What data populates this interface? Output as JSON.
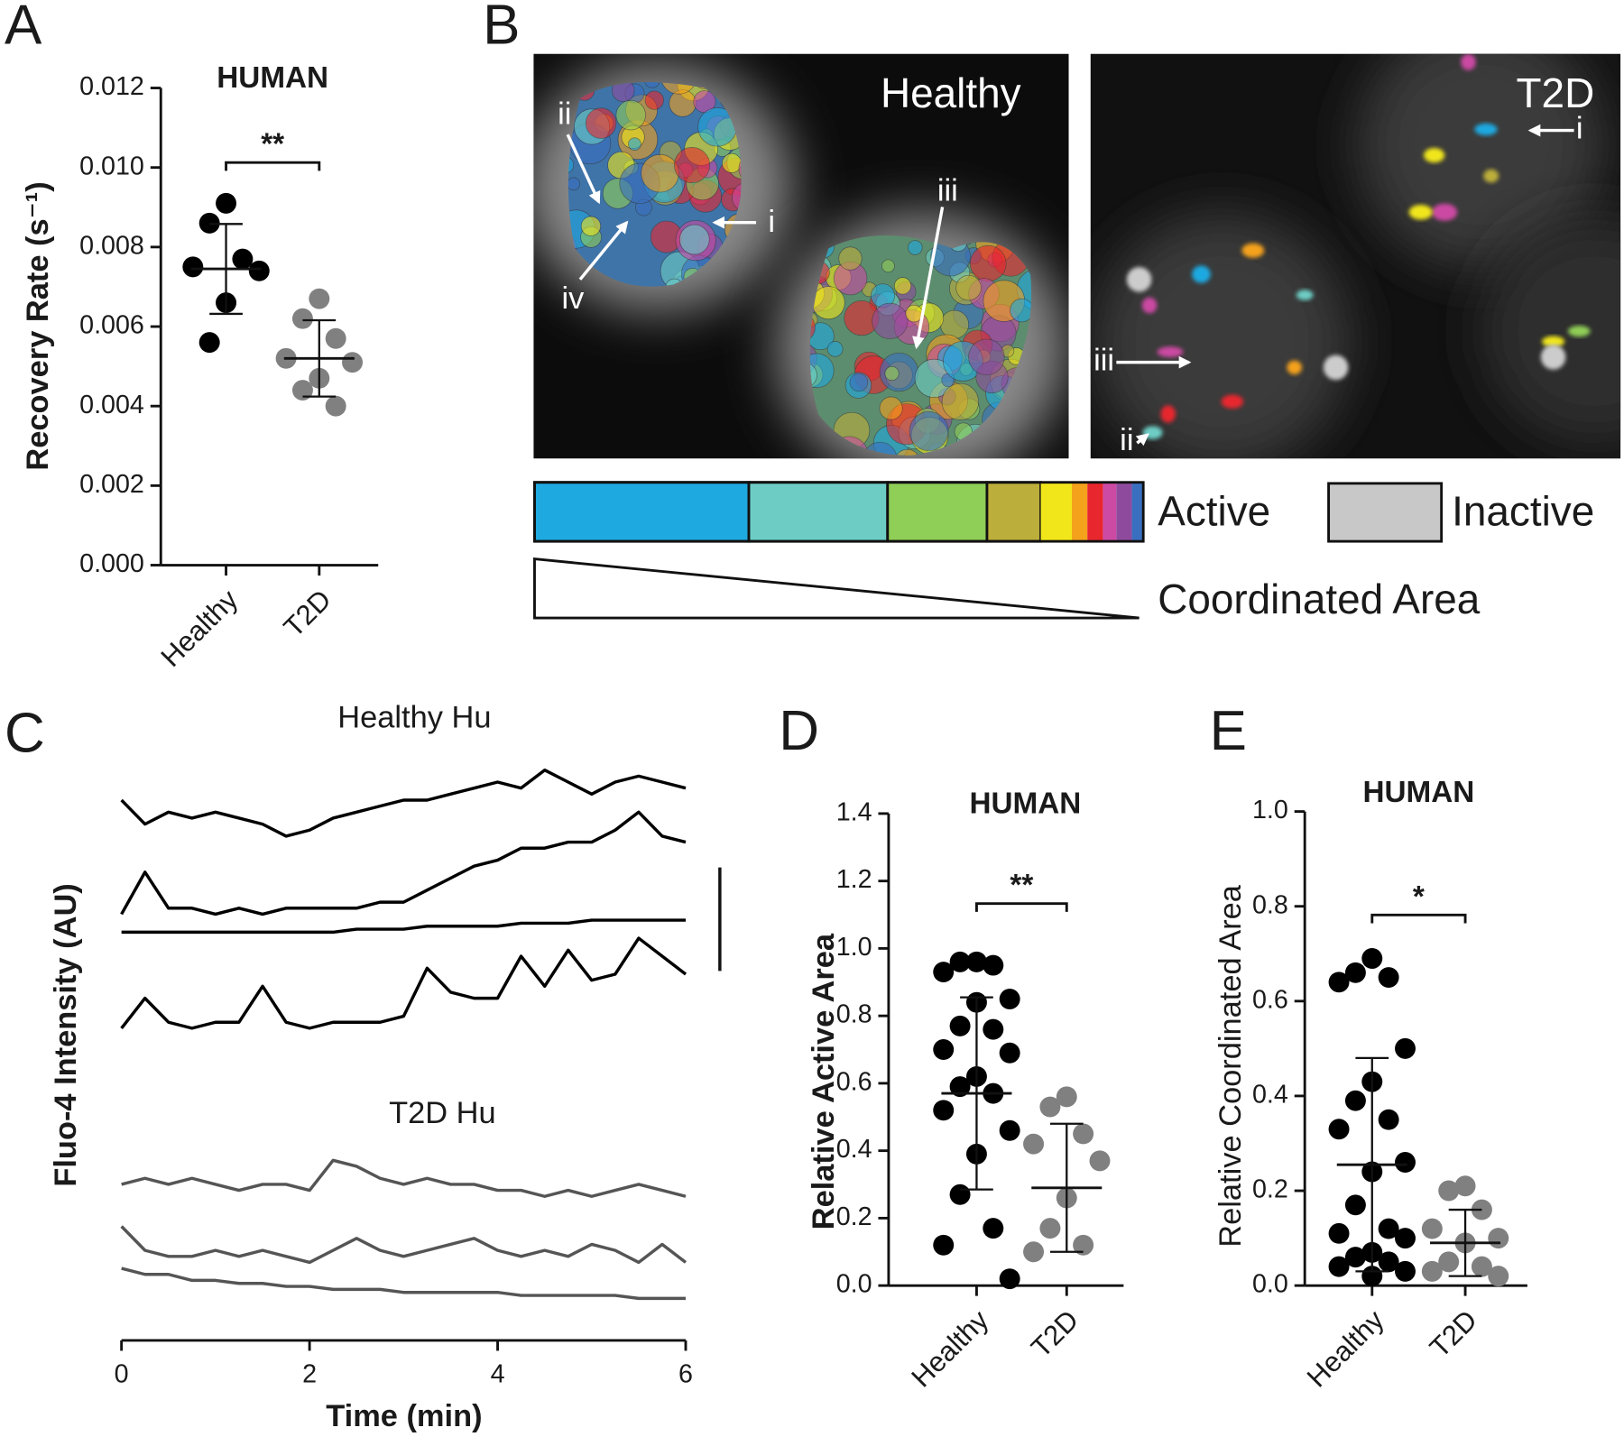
{
  "panel_labels": [
    "A",
    "B",
    "C",
    "D",
    "E"
  ],
  "image_panel": {
    "healthy_label": "Healthy",
    "t2d_label": "T2D",
    "healthy_arrows": [
      "i",
      "ii",
      "iii",
      "iv"
    ],
    "t2d_arrows": [
      "i",
      "ii",
      "iii"
    ],
    "legend": {
      "active": "Active",
      "inactive": "Inactive",
      "coordinated": "Coordinated Area"
    }
  },
  "chart_data": [
    {
      "type": "dotplot",
      "title": "HUMAN",
      "ylabel": "Recovery Rate (s⁻¹)",
      "significance": "**",
      "ylim": [
        0,
        0.012
      ],
      "yticks": [
        {
          "value": 0,
          "label": "0.000"
        },
        {
          "value": 0.002,
          "label": "0.002"
        },
        {
          "value": 0.004,
          "label": "0.004"
        },
        {
          "value": 0.006,
          "label": "0.006"
        },
        {
          "value": 0.008,
          "label": "0.008"
        },
        {
          "value": 0.01,
          "label": "0.010"
        },
        {
          "value": 0.012,
          "label": "0.012"
        }
      ],
      "groups": [
        {
          "name": "Healthy",
          "color": "#000000",
          "values": [
            0.0091,
            0.0086,
            0.0077,
            0.0075,
            0.0074,
            0.0066,
            0.0056
          ],
          "mean": 0.00745,
          "sd": 0.00113
        },
        {
          "name": "T2D",
          "color": "#808080",
          "values": [
            0.0067,
            0.0062,
            0.0057,
            0.0052,
            0.0051,
            0.0047,
            0.0044,
            0.004
          ],
          "mean": 0.0052,
          "sd": 0.00096
        }
      ]
    },
    {
      "type": "line",
      "annotations": [
        "Healthy Hu",
        "T2D Hu"
      ],
      "xlabel": "Time (min)",
      "ylabel": "Fluo-4 Intensity (AU)",
      "x": [
        0,
        0.25,
        0.5,
        0.75,
        1,
        1.25,
        1.5,
        1.75,
        2,
        2.25,
        2.5,
        2.75,
        3,
        3.25,
        3.5,
        3.75,
        4,
        4.25,
        4.5,
        4.75,
        5,
        5.25,
        5.5,
        5.75,
        6
      ],
      "xlim": [
        0,
        6
      ],
      "xticks": [
        0,
        2,
        4,
        6
      ],
      "ylim": [
        0,
        100
      ],
      "series": [
        {
          "color": "#000000",
          "values": [
            90,
            86,
            88,
            87,
            88,
            87,
            86,
            84,
            85,
            87,
            88,
            89,
            90,
            90,
            91,
            92,
            93,
            92,
            95,
            93,
            91,
            93,
            94,
            93,
            92
          ]
        },
        {
          "color": "#000000",
          "values": [
            71,
            78,
            72,
            72,
            71,
            72,
            71,
            72,
            72,
            72,
            72,
            73,
            73,
            75,
            77,
            79,
            80,
            82,
            82,
            83,
            83,
            85,
            88,
            84,
            83
          ]
        },
        {
          "color": "#000000",
          "values": [
            68,
            68,
            68,
            68,
            68,
            68,
            68,
            68,
            68,
            68,
            68.5,
            68.5,
            68.5,
            69,
            69,
            69,
            69,
            69.5,
            69.5,
            69.5,
            70,
            70,
            70,
            70,
            70
          ]
        },
        {
          "color": "#000000",
          "values": [
            52,
            57,
            53,
            52,
            53,
            53,
            59,
            53,
            52,
            53,
            53,
            53,
            54,
            62,
            58,
            57,
            57,
            64,
            59,
            65,
            60,
            61,
            67,
            64,
            61
          ]
        },
        {
          "color": "#555555",
          "values": [
            26,
            27,
            26,
            27,
            26,
            25,
            26,
            26,
            25,
            30,
            29,
            27,
            26,
            27,
            26,
            26,
            25,
            25,
            24,
            25,
            24,
            25,
            26,
            25,
            24
          ]
        },
        {
          "color": "#555555",
          "values": [
            19,
            15,
            14,
            14,
            15,
            14,
            15,
            14,
            13,
            15,
            17,
            15,
            14,
            15,
            16,
            17,
            15,
            14,
            15,
            14,
            16,
            15,
            13,
            16,
            13
          ]
        },
        {
          "color": "#555555",
          "values": [
            12,
            11,
            11,
            10,
            10,
            9.5,
            9.5,
            9,
            9,
            8.5,
            8.5,
            8.5,
            8,
            8,
            8,
            8,
            8,
            7.5,
            7.5,
            7.5,
            7.5,
            7.5,
            7,
            7,
            7
          ]
        }
      ]
    },
    {
      "type": "dotplot",
      "title": "HUMAN",
      "ylabel": "Relative Active Area",
      "significance": "**",
      "ylim": [
        0,
        1.4
      ],
      "yticks": [
        {
          "value": 0,
          "label": "0.0"
        },
        {
          "value": 0.2,
          "label": "0.2"
        },
        {
          "value": 0.4,
          "label": "0.4"
        },
        {
          "value": 0.6,
          "label": "0.6"
        },
        {
          "value": 0.8,
          "label": "0.8"
        },
        {
          "value": 1,
          "label": "1.0"
        },
        {
          "value": 1.2,
          "label": "1.2"
        },
        {
          "value": 1.4,
          "label": "1.4"
        }
      ],
      "groups": [
        {
          "name": "Healthy",
          "color": "#000000",
          "values": [
            0.96,
            0.96,
            0.95,
            0.93,
            0.85,
            0.84,
            0.77,
            0.76,
            0.7,
            0.69,
            0.62,
            0.59,
            0.57,
            0.52,
            0.46,
            0.39,
            0.27,
            0.17,
            0.12,
            0.02
          ],
          "mean": 0.57,
          "sd": 0.285
        },
        {
          "name": "T2D",
          "color": "#808080",
          "values": [
            0.56,
            0.53,
            0.45,
            0.42,
            0.37,
            0.26,
            0.17,
            0.12,
            0.1
          ],
          "mean": 0.29,
          "sd": 0.19
        }
      ]
    },
    {
      "type": "dotplot",
      "title": "HUMAN",
      "ylabel": "Relative Coordinated Area",
      "significance": "*",
      "ylim": [
        0,
        1
      ],
      "yticks": [
        {
          "value": 0,
          "label": "0.0"
        },
        {
          "value": 0.2,
          "label": "0.2"
        },
        {
          "value": 0.4,
          "label": "0.4"
        },
        {
          "value": 0.6,
          "label": "0.6"
        },
        {
          "value": 0.8,
          "label": "0.8"
        },
        {
          "value": 1,
          "label": "1.0"
        }
      ],
      "groups": [
        {
          "name": "Healthy",
          "color": "#000000",
          "values": [
            0.69,
            0.66,
            0.65,
            0.64,
            0.5,
            0.43,
            0.39,
            0.35,
            0.33,
            0.26,
            0.24,
            0.17,
            0.12,
            0.11,
            0.1,
            0.07,
            0.06,
            0.05,
            0.04,
            0.03,
            0.02
          ],
          "mean": 0.255,
          "sd": 0.225
        },
        {
          "name": "T2D",
          "color": "#808080",
          "values": [
            0.21,
            0.2,
            0.16,
            0.12,
            0.1,
            0.09,
            0.05,
            0.04,
            0.03,
            0.02
          ],
          "mean": 0.09,
          "sd": 0.07
        }
      ]
    }
  ]
}
